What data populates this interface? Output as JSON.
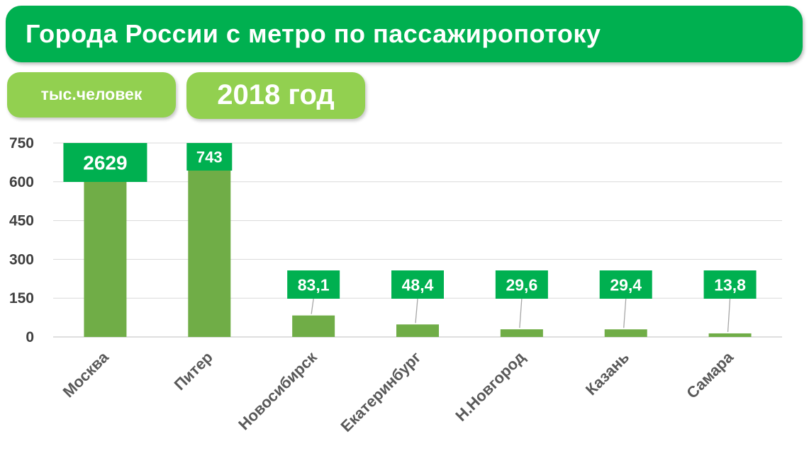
{
  "header": {
    "title": "Города России с метро по пассажиропотоку",
    "unit": "тыс.человек",
    "year": "2018 год"
  },
  "colors": {
    "banner": "#00b050",
    "pill": "#92d050",
    "bar": "#70ad47",
    "data_label_bg": "#00b050",
    "gridline": "#d9d9d9",
    "axis_text": "#404040"
  },
  "chart_data": {
    "type": "bar",
    "title": "Города России с метро по пассажиропотоку",
    "subtitle": "2018 год",
    "ylabel": "тыс.человек",
    "xlabel": "",
    "ylim": [
      0,
      750
    ],
    "y_ticks": [
      0,
      150,
      300,
      450,
      600,
      750
    ],
    "grid": true,
    "axis_truncated": true,
    "categories": [
      "Москва",
      "Питер",
      "Новосибирск",
      "Екатеринбург",
      "Н.Новгород",
      "Казань",
      "Самара"
    ],
    "values": [
      2629,
      743,
      83.1,
      48.4,
      29.6,
      29.4,
      13.8
    ],
    "data_labels": [
      "2629",
      "743",
      "83,1",
      "48,4",
      "29,6",
      "29,4",
      "13,8"
    ]
  }
}
